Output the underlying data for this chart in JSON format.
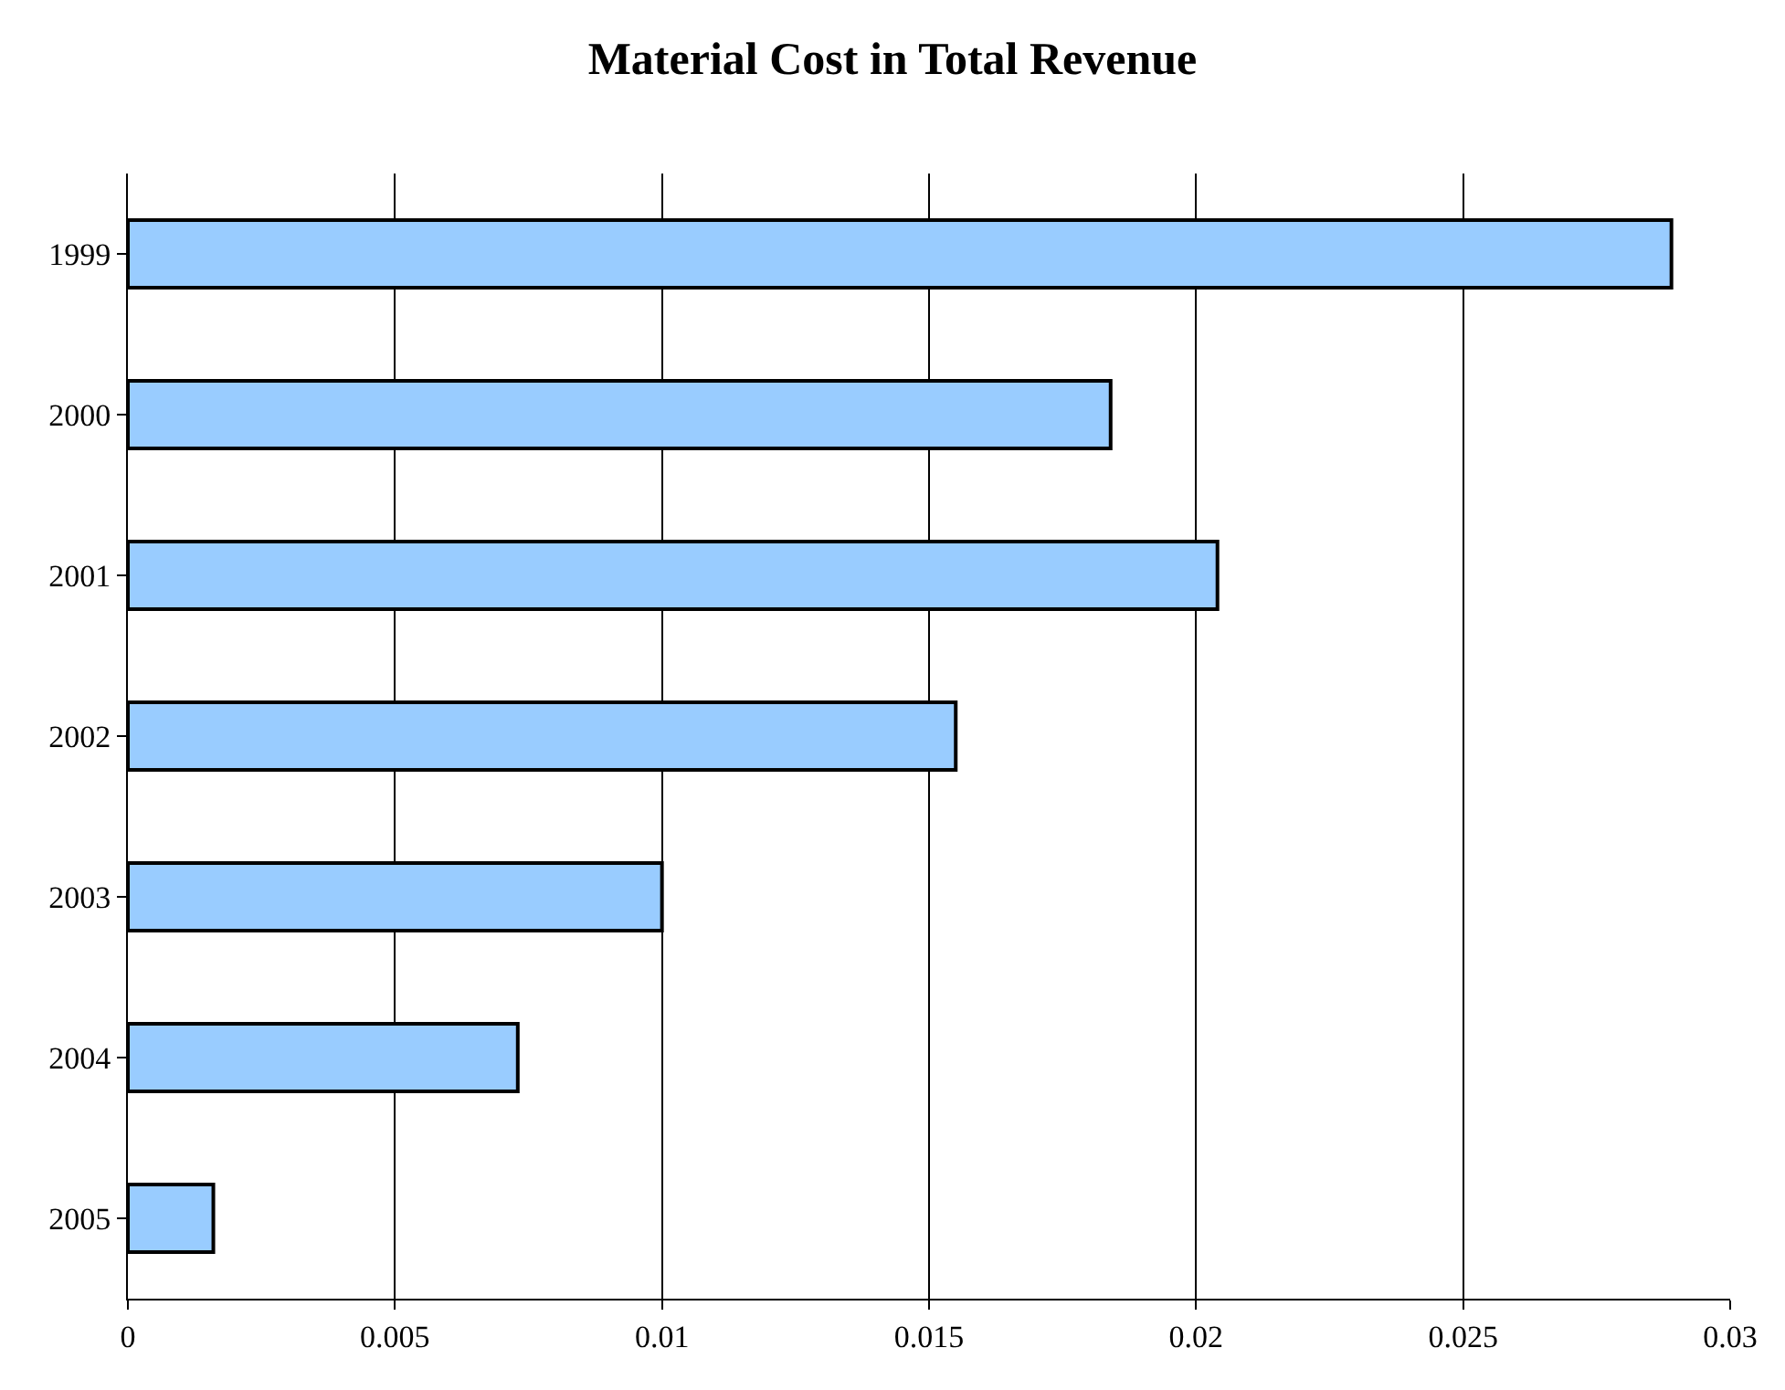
{
  "chart_data": {
    "type": "bar",
    "orientation": "horizontal",
    "title": "Material Cost in Total Revenue",
    "categories": [
      "1999",
      "2000",
      "2001",
      "2002",
      "2003",
      "2004",
      "2005"
    ],
    "values": [
      0.0289,
      0.0184,
      0.0204,
      0.0155,
      0.01,
      0.0073,
      0.0016
    ],
    "color": "#99ccff",
    "xlim": [
      0,
      0.03
    ],
    "xticks": [
      0,
      0.005,
      0.01,
      0.015,
      0.02,
      0.025,
      0.03
    ],
    "grid": "x",
    "legend": false
  }
}
